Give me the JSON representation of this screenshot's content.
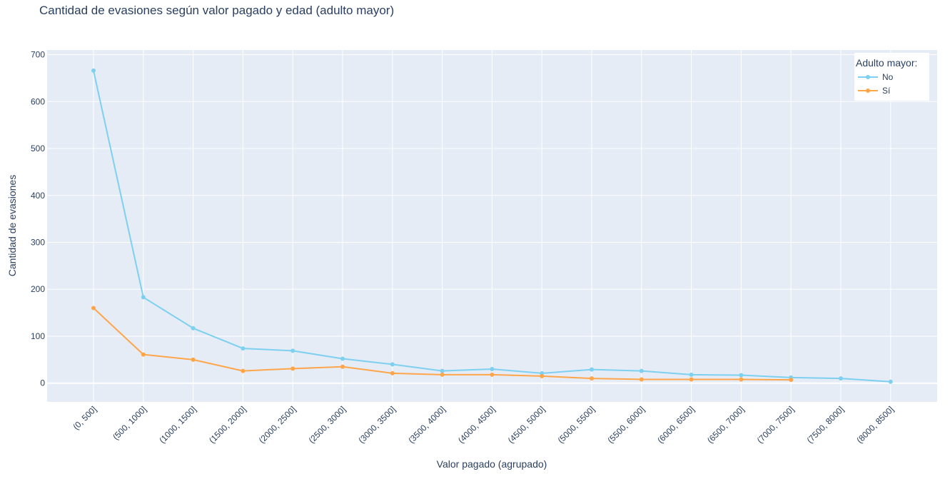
{
  "chart_data": {
    "type": "line",
    "title": "Cantidad de evasiones según valor pagado y edad (adulto mayor)",
    "xlabel": "Valor pagado (agrupado)",
    "ylabel": "Cantidad de evasiones",
    "categories": [
      "(0, 500]",
      "(500, 1000]",
      "(1000, 1500]",
      "(1500, 2000]",
      "(2000, 2500]",
      "(2500, 3000]",
      "(3000, 3500]",
      "(3500, 4000]",
      "(4000, 4500]",
      "(4500, 5000]",
      "(5000, 5500]",
      "(5500, 6000]",
      "(6000, 6500]",
      "(6500, 7000]",
      "(7000, 7500]",
      "(7500, 8000]",
      "(8000, 8500]"
    ],
    "ylim": [
      -40,
      710
    ],
    "yticks": [
      0,
      100,
      200,
      300,
      400,
      500,
      600,
      700
    ],
    "grid": true,
    "legend": {
      "title": "Adulto mayor:",
      "placement": "top-right"
    },
    "series": [
      {
        "name": "No",
        "color": "#7dd0ef",
        "values": [
          666,
          183,
          117,
          74,
          69,
          52,
          40,
          26,
          30,
          21,
          29,
          26,
          18,
          17,
          12,
          10,
          3
        ]
      },
      {
        "name": "Sí",
        "color": "#ffa54a",
        "values": [
          160,
          61,
          50,
          26,
          31,
          35,
          21,
          18,
          18,
          15,
          10,
          8,
          8,
          8,
          7,
          null,
          null
        ]
      }
    ]
  }
}
